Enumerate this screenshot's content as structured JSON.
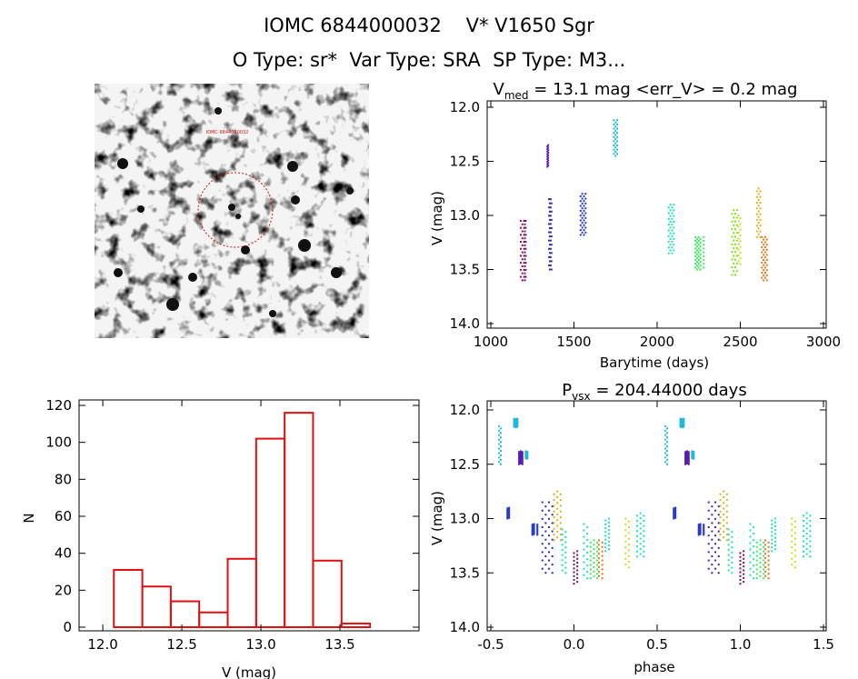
{
  "header": {
    "line1": "IOMC 6844000032    V* V1650 Sgr",
    "line2": "O Type: sr*  Var Type: SRA  SP Type: M3..."
  },
  "image_panel": {
    "kind": "finder chart",
    "marker_label": "IOMC 6844000032"
  },
  "colors": {
    "histogram": "#dd1111",
    "marker": "#cc1111",
    "seasons": [
      "#7b1060",
      "#5a1ab0",
      "#2838c8",
      "#1fb8d8",
      "#20e0c0",
      "#40e860",
      "#c8e020",
      "#e07818"
    ]
  },
  "chart_data": [
    {
      "id": "lightcurve",
      "type": "scatter",
      "title": "V_med = 13.1 mag <err_V> = 0.2 mag",
      "title_main": "V",
      "title_sub": "med",
      "title_rest": " = 13.1 mag <err_V> = 0.2 mag",
      "xlabel": "Barytime (days)",
      "ylabel": "V (mag)",
      "xlim": [
        1000,
        3000
      ],
      "ylim": [
        14.0,
        12.0
      ],
      "x_ticks": [
        "1000",
        "1500",
        "2000",
        "2500",
        "3000"
      ],
      "y_ticks": [
        "12.0",
        "12.5",
        "13.0",
        "13.5",
        "14.0"
      ],
      "series": [
        {
          "x": [
            1180,
            1190,
            1200,
            1205,
            1210
          ],
          "ymin": 13.05,
          "ymax": 13.6,
          "color": "#7b1060"
        },
        {
          "x": [
            1340,
            1345
          ],
          "ymin": 12.35,
          "ymax": 12.55,
          "color": "#5a1ab0"
        },
        {
          "x": [
            1350,
            1355,
            1360,
            1365
          ],
          "ymin": 12.85,
          "ymax": 13.5,
          "color": "#3028c0"
        },
        {
          "x": [
            1540,
            1550,
            1560,
            1570
          ],
          "ymin": 12.8,
          "ymax": 13.18,
          "color": "#2838c8"
        },
        {
          "x": [
            1740,
            1750,
            1760
          ],
          "ymin": 12.12,
          "ymax": 12.45,
          "color": "#1fb8d8"
        },
        {
          "x": [
            2070,
            2080,
            2090,
            2100
          ],
          "ymin": 12.9,
          "ymax": 13.35,
          "color": "#20e0c0"
        },
        {
          "x": [
            2230,
            2240,
            2250,
            2260,
            2280
          ],
          "ymin": 13.2,
          "ymax": 13.5,
          "color": "#40e860"
        },
        {
          "x": [
            2450,
            2460,
            2470,
            2480
          ],
          "ymin": 12.95,
          "ymax": 13.55,
          "color": "#80e020"
        },
        {
          "x": [
            2490,
            2500
          ],
          "ymin": 13.0,
          "ymax": 13.45,
          "color": "#c8e020"
        },
        {
          "x": [
            2600,
            2610,
            2620
          ],
          "ymin": 12.75,
          "ymax": 13.2,
          "color": "#e0b020"
        },
        {
          "x": [
            2630,
            2640,
            2650,
            2660
          ],
          "ymin": 13.2,
          "ymax": 13.6,
          "color": "#e07818"
        }
      ]
    },
    {
      "id": "histogram",
      "type": "bar",
      "xlabel": "V (mag)",
      "ylabel": "N",
      "xlim": [
        11.85,
        14.0
      ],
      "ylim": [
        0,
        120
      ],
      "x_ticks": [
        "12.0",
        "12.5",
        "13.0",
        "13.5"
      ],
      "y_ticks": [
        "0",
        "20",
        "40",
        "60",
        "80",
        "100",
        "120"
      ],
      "bin_edges": [
        12.07,
        12.25,
        12.43,
        12.61,
        12.79,
        12.97,
        13.15,
        13.33,
        13.51,
        13.69
      ],
      "values": [
        31,
        22,
        14,
        8,
        37,
        102,
        116,
        36,
        2
      ]
    },
    {
      "id": "phased",
      "type": "scatter",
      "title": "P_vsx = 204.44000 days",
      "title_main": "P",
      "title_sub": "vsx",
      "title_rest": " = 204.44000 days",
      "xlabel": "phase",
      "ylabel": "V (mag)",
      "xlim": [
        -0.5,
        1.5
      ],
      "ylim": [
        14.0,
        12.0
      ],
      "x_ticks": [
        "-0.5",
        "0.0",
        "0.5",
        "1.0",
        "1.5"
      ],
      "y_ticks": [
        "12.0",
        "12.5",
        "13.0",
        "13.5",
        "14.0"
      ],
      "series": [
        {
          "x": [
            -0.45,
            -0.44
          ],
          "ymin": 12.15,
          "ymax": 12.5,
          "color": "#1fb8d8"
        },
        {
          "x": [
            -0.4,
            -0.39
          ],
          "ymin": 12.9,
          "ymax": 13.0,
          "color": "#2838c8"
        },
        {
          "x": [
            -0.36,
            -0.35,
            -0.34
          ],
          "ymin": 12.08,
          "ymax": 12.16,
          "color": "#1fb8d8"
        },
        {
          "x": [
            -0.33,
            -0.32,
            -0.31
          ],
          "ymin": 12.38,
          "ymax": 12.5,
          "color": "#5a1ab0"
        },
        {
          "x": [
            -0.29,
            -0.28
          ],
          "ymin": 12.38,
          "ymax": 12.45,
          "color": "#1fb8d8"
        },
        {
          "x": [
            -0.25,
            -0.24,
            -0.22
          ],
          "ymin": 13.05,
          "ymax": 13.15,
          "color": "#2838c8"
        },
        {
          "x": [
            -0.19,
            -0.17,
            -0.15,
            -0.13
          ],
          "ymin": 12.85,
          "ymax": 13.5,
          "color": "#3028c0"
        },
        {
          "x": [
            -0.12,
            -0.1,
            -0.08
          ],
          "ymin": 12.75,
          "ymax": 13.2,
          "color": "#e0b020"
        },
        {
          "x": [
            -0.07,
            -0.05
          ],
          "ymin": 13.1,
          "ymax": 13.5,
          "color": "#20e0c0"
        },
        {
          "x": [
            0.0,
            0.02
          ],
          "ymin": 13.3,
          "ymax": 13.6,
          "color": "#7b1060"
        },
        {
          "x": [
            0.06,
            0.08
          ],
          "ymin": 13.05,
          "ymax": 13.55,
          "color": "#20e0c0"
        },
        {
          "x": [
            0.1,
            0.12,
            0.14
          ],
          "ymin": 13.2,
          "ymax": 13.55,
          "color": "#40e860"
        },
        {
          "x": [
            0.15,
            0.17
          ],
          "ymin": 13.2,
          "ymax": 13.55,
          "color": "#e07818"
        },
        {
          "x": [
            0.19,
            0.21
          ],
          "ymin": 13.0,
          "ymax": 13.3,
          "color": "#20e0c0"
        },
        {
          "x": [
            0.31,
            0.33
          ],
          "ymin": 13.0,
          "ymax": 13.45,
          "color": "#c8e020"
        },
        {
          "x": [
            0.38,
            0.4,
            0.42
          ],
          "ymin": 12.95,
          "ymax": 13.35,
          "color": "#20e0c0"
        },
        {
          "x": [
            0.55,
            0.56
          ],
          "ymin": 12.15,
          "ymax": 12.5,
          "color": "#1fb8d8"
        },
        {
          "x": [
            0.6,
            0.61
          ],
          "ymin": 12.9,
          "ymax": 13.0,
          "color": "#2838c8"
        },
        {
          "x": [
            0.64,
            0.65,
            0.66
          ],
          "ymin": 12.08,
          "ymax": 12.16,
          "color": "#1fb8d8"
        },
        {
          "x": [
            0.67,
            0.68,
            0.69
          ],
          "ymin": 12.38,
          "ymax": 12.5,
          "color": "#5a1ab0"
        },
        {
          "x": [
            0.71,
            0.72
          ],
          "ymin": 12.38,
          "ymax": 12.45,
          "color": "#1fb8d8"
        },
        {
          "x": [
            0.75,
            0.76,
            0.78
          ],
          "ymin": 13.05,
          "ymax": 13.15,
          "color": "#2838c8"
        },
        {
          "x": [
            0.81,
            0.83,
            0.85,
            0.87
          ],
          "ymin": 12.85,
          "ymax": 13.5,
          "color": "#3028c0"
        },
        {
          "x": [
            0.88,
            0.9,
            0.92
          ],
          "ymin": 12.75,
          "ymax": 13.2,
          "color": "#e0b020"
        },
        {
          "x": [
            0.93,
            0.95
          ],
          "ymin": 13.1,
          "ymax": 13.5,
          "color": "#20e0c0"
        },
        {
          "x": [
            1.0,
            1.02
          ],
          "ymin": 13.3,
          "ymax": 13.6,
          "color": "#7b1060"
        },
        {
          "x": [
            1.06,
            1.08
          ],
          "ymin": 13.05,
          "ymax": 13.55,
          "color": "#20e0c0"
        },
        {
          "x": [
            1.1,
            1.12,
            1.14
          ],
          "ymin": 13.2,
          "ymax": 13.55,
          "color": "#40e860"
        },
        {
          "x": [
            1.15,
            1.17
          ],
          "ymin": 13.2,
          "ymax": 13.55,
          "color": "#e07818"
        },
        {
          "x": [
            1.19,
            1.21
          ],
          "ymin": 13.0,
          "ymax": 13.3,
          "color": "#20e0c0"
        },
        {
          "x": [
            1.31,
            1.33
          ],
          "ymin": 13.0,
          "ymax": 13.45,
          "color": "#c8e020"
        },
        {
          "x": [
            1.38,
            1.4,
            1.42
          ],
          "ymin": 12.95,
          "ymax": 13.35,
          "color": "#20e0c0"
        }
      ]
    }
  ]
}
